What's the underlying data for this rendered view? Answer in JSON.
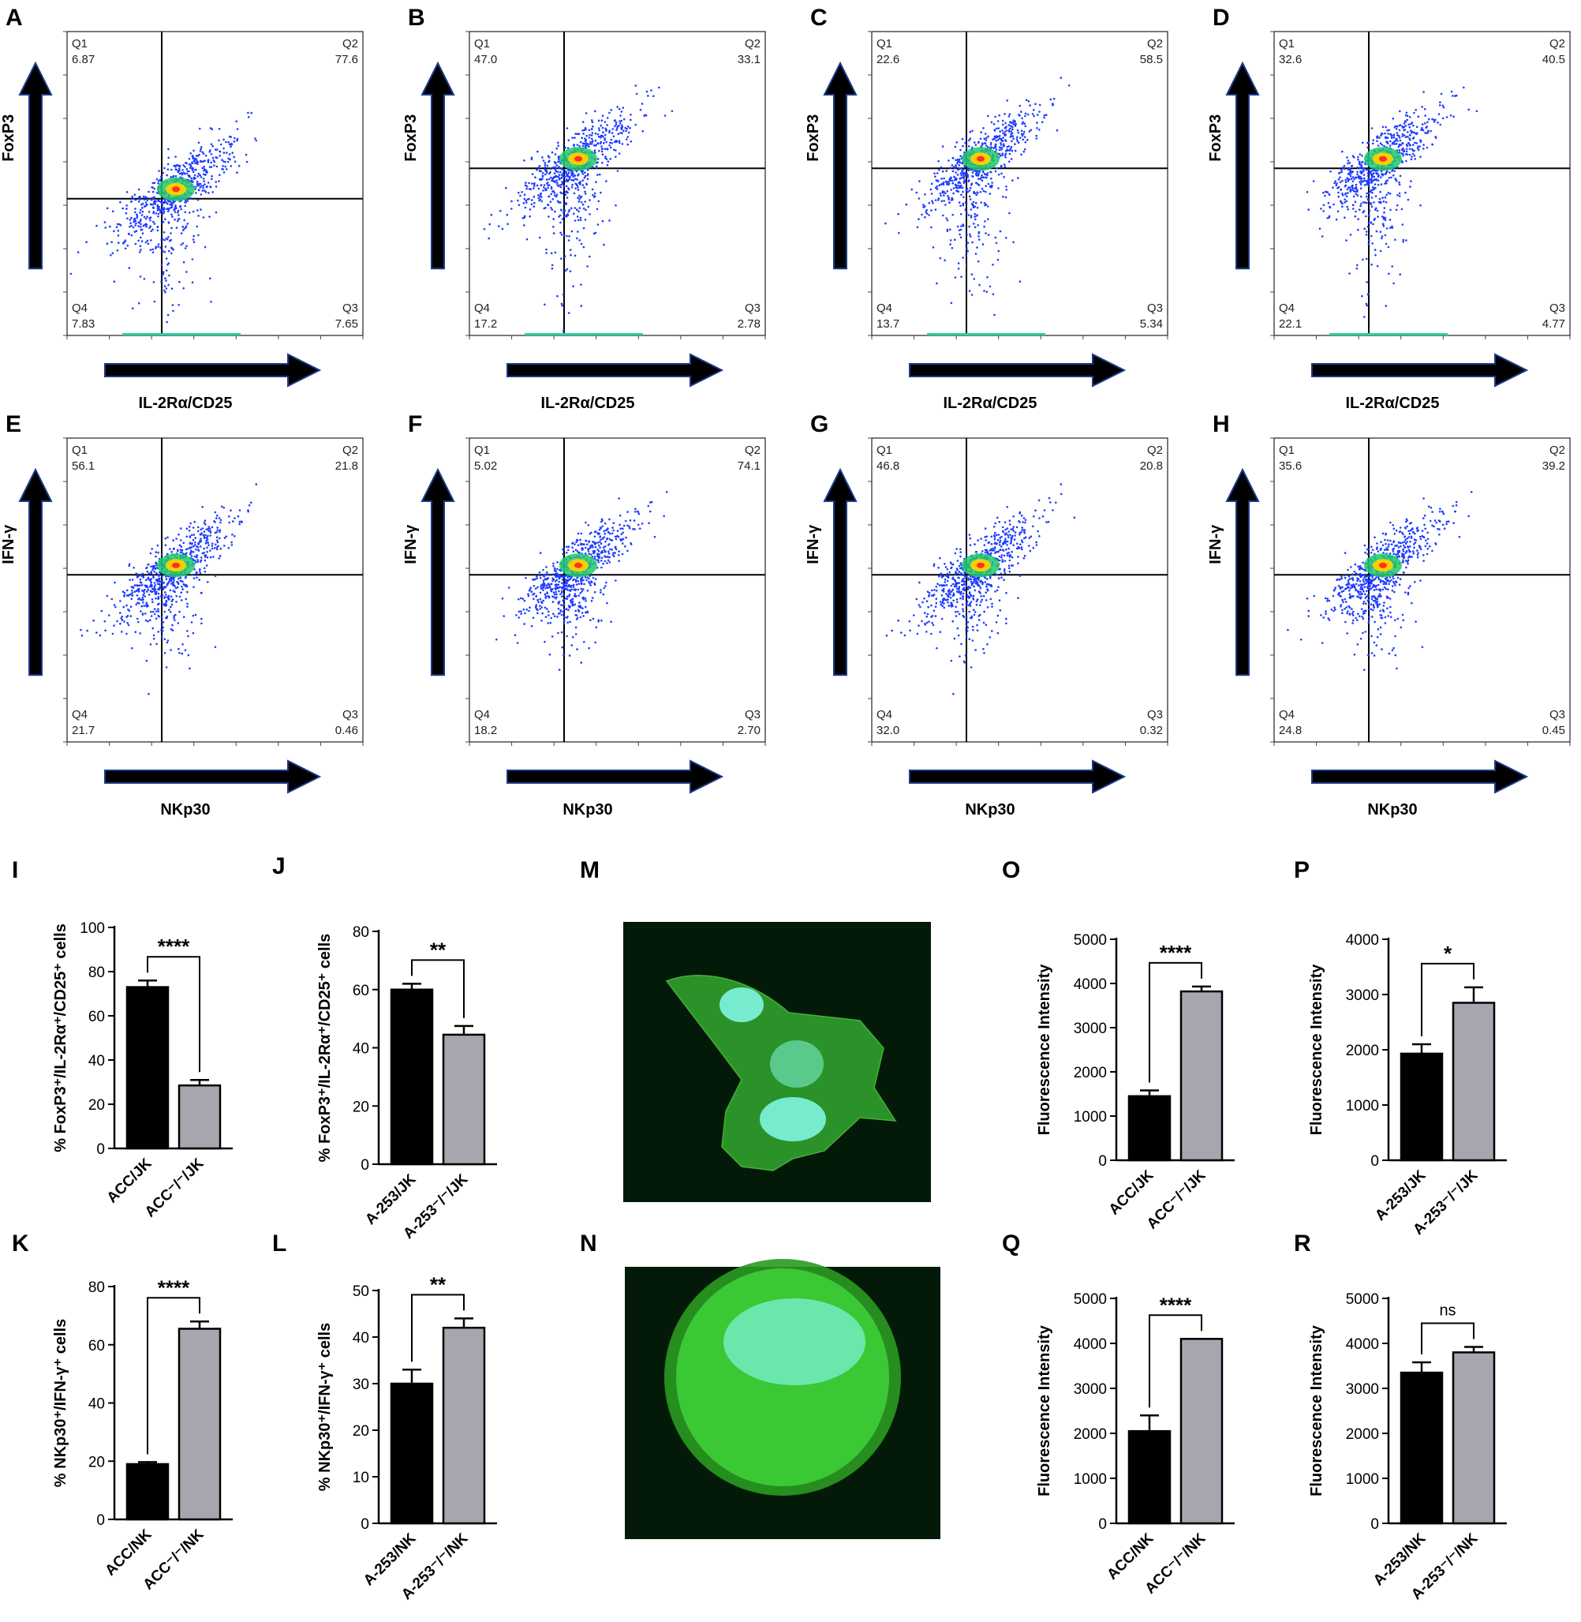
{
  "flow_panels": [
    {
      "letter": "A",
      "ylabel": "FoxP3",
      "xlabel": "IL-2Rα/CD25",
      "q1": "6.87",
      "q2": "77.6",
      "q3": "7.65",
      "q4": "7.83"
    },
    {
      "letter": "B",
      "ylabel": "FoxP3",
      "xlabel": "IL-2Rα/CD25",
      "q1": "47.0",
      "q2": "33.1",
      "q3": "2.78",
      "q4": "17.2"
    },
    {
      "letter": "C",
      "ylabel": "FoxP3",
      "xlabel": "IL-2Rα/CD25",
      "q1": "22.6",
      "q2": "58.5",
      "q3": "5.34",
      "q4": "13.7"
    },
    {
      "letter": "D",
      "ylabel": "FoxP3",
      "xlabel": "IL-2Rα/CD25",
      "q1": "32.6",
      "q2": "40.5",
      "q3": "4.77",
      "q4": "22.1"
    },
    {
      "letter": "E",
      "ylabel": "IFN-γ",
      "xlabel": "NKp30",
      "q1": "56.1",
      "q2": "21.8",
      "q3": "0.46",
      "q4": "21.7"
    },
    {
      "letter": "F",
      "ylabel": "IFN-γ",
      "xlabel": "NKp30",
      "q1": "5.02",
      "q2": "74.1",
      "q3": "2.70",
      "q4": "18.2"
    },
    {
      "letter": "G",
      "ylabel": "IFN-γ",
      "xlabel": "NKp30",
      "q1": "46.8",
      "q2": "20.8",
      "q3": "0.32",
      "q4": "32.0"
    },
    {
      "letter": "H",
      "ylabel": "IFN-γ",
      "xlabel": "NKp30",
      "q1": "35.6",
      "q2": "39.2",
      "q3": "0.45",
      "q4": "24.8"
    }
  ],
  "quadrant_names": {
    "q1": "Q1",
    "q2": "Q2",
    "q3": "Q3",
    "q4": "Q4"
  },
  "colors": {
    "control_bar": "#000000",
    "knockout_bar": "#a6a6ae",
    "flow_dot": "#1e3cff",
    "flow_hot": "#ffd000",
    "micrograph_bg": "#041a08",
    "actin": "#3fd23a",
    "nucleus": "#7ff5df"
  },
  "micrographs": [
    {
      "letter": "M",
      "description_icon": "cell-spread-micrograph"
    },
    {
      "letter": "N",
      "description_icon": "cell-round-micrograph"
    }
  ],
  "chart_data": [
    {
      "letter": "I",
      "type": "bar",
      "ylabel": "% FoxP3⁺/IL-2Rα⁺/CD25⁺ cells",
      "ylim": [
        0,
        100
      ],
      "ticks": [
        0,
        20,
        40,
        60,
        80,
        100
      ],
      "categories": [
        "ACC/JK",
        "ACC⁻/⁻/JK"
      ],
      "values": [
        73,
        28.5
      ],
      "errors": [
        3,
        2.5
      ],
      "significance": "****"
    },
    {
      "letter": "J",
      "type": "bar",
      "ylabel": "% FoxP3⁺/IL-2Rα⁺/CD25⁺ cells",
      "ylim": [
        0,
        80
      ],
      "ticks": [
        0,
        20,
        40,
        60,
        80
      ],
      "categories": [
        "A-253/JK",
        "A-253⁻/⁻/JK"
      ],
      "values": [
        60,
        44.5
      ],
      "errors": [
        2,
        3
      ],
      "significance": "**"
    },
    {
      "letter": "K",
      "type": "bar",
      "ylabel": "% NKp30⁺/IFN-γ⁺ cells",
      "ylim": [
        0,
        80
      ],
      "ticks": [
        0,
        20,
        40,
        60,
        80
      ],
      "categories": [
        "ACC/NK",
        "ACC⁻/⁻/NK"
      ],
      "values": [
        19,
        65.5
      ],
      "errors": [
        0.7,
        2.5
      ],
      "significance": "****"
    },
    {
      "letter": "L",
      "type": "bar",
      "ylabel": "% NKp30⁺/IFN-γ⁺ cells",
      "ylim": [
        0,
        50
      ],
      "ticks": [
        0,
        10,
        20,
        30,
        40,
        50
      ],
      "categories": [
        "A-253/NK",
        "A-253⁻/⁻/NK"
      ],
      "values": [
        30,
        42
      ],
      "errors": [
        3,
        2
      ],
      "significance": "**"
    },
    {
      "letter": "O",
      "type": "bar",
      "ylabel": "Fluorescence Intensity",
      "ylim": [
        0,
        5000
      ],
      "ticks": [
        0,
        1000,
        2000,
        3000,
        4000,
        5000
      ],
      "categories": [
        "ACC/JK",
        "ACC⁻/⁻/JK"
      ],
      "values": [
        1450,
        3820
      ],
      "errors": [
        130,
        110
      ],
      "significance": "****"
    },
    {
      "letter": "P",
      "type": "bar",
      "ylabel": "Fluorescence Intensity",
      "ylim": [
        0,
        4000
      ],
      "ticks": [
        0,
        1000,
        2000,
        3000,
        4000
      ],
      "categories": [
        "A-253/JK",
        "A-253⁻/⁻/JK"
      ],
      "values": [
        1930,
        2850
      ],
      "errors": [
        170,
        280
      ],
      "significance": "*"
    },
    {
      "letter": "Q",
      "type": "bar",
      "ylabel": "Fluorescence Intensity",
      "ylim": [
        0,
        5000
      ],
      "ticks": [
        0,
        1000,
        2000,
        3000,
        4000,
        5000
      ],
      "categories": [
        "ACC/NK",
        "ACC⁻/⁻/NK"
      ],
      "values": [
        2050,
        4100
      ],
      "errors": [
        350,
        0
      ],
      "significance": "****"
    },
    {
      "letter": "R",
      "type": "bar",
      "ylabel": "Fluorescence Intensity",
      "ylim": [
        0,
        5000
      ],
      "ticks": [
        0,
        1000,
        2000,
        3000,
        4000,
        5000
      ],
      "categories": [
        "A-253/NK",
        "A-253⁻/⁻/NK"
      ],
      "values": [
        3350,
        3800
      ],
      "errors": [
        230,
        120
      ],
      "significance": "ns"
    }
  ]
}
